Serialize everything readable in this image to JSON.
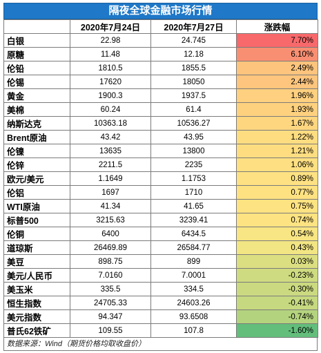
{
  "title": "隔夜全球金融市场行情",
  "headers": [
    "",
    "2020年7月24日",
    "2020年7月27日",
    "涨跌幅"
  ],
  "rows": [
    {
      "name": "白银",
      "d1": "22.98",
      "d2": "24.745",
      "chg": "7.70%",
      "color": "#f8696b"
    },
    {
      "name": "原糖",
      "d1": "11.48",
      "d2": "12.18",
      "chg": "6.10%",
      "color": "#f98f72"
    },
    {
      "name": "伦铅",
      "d1": "1810.5",
      "d2": "1855.5",
      "chg": "2.49%",
      "color": "#fdc47d"
    },
    {
      "name": "伦锡",
      "d1": "17620",
      "d2": "18050",
      "chg": "2.44%",
      "color": "#fdc57d"
    },
    {
      "name": "黄金",
      "d1": "1900.3",
      "d2": "1937.5",
      "chg": "1.96%",
      "color": "#fed07f"
    },
    {
      "name": "美棉",
      "d1": "60.24",
      "d2": "61.4",
      "chg": "1.93%",
      "color": "#fed17f"
    },
    {
      "name": "纳斯达克",
      "d1": "10363.18",
      "d2": "10536.27",
      "chg": "1.67%",
      "color": "#fed680"
    },
    {
      "name": "Brent原油",
      "d1": "43.42",
      "d2": "43.95",
      "chg": "1.22%",
      "color": "#fedd81"
    },
    {
      "name": "伦镍",
      "d1": "13635",
      "d2": "13800",
      "chg": "1.21%",
      "color": "#fedd81"
    },
    {
      "name": "伦锌",
      "d1": "2211.5",
      "d2": "2235",
      "chg": "1.06%",
      "color": "#fee082"
    },
    {
      "name": "欧元/美元",
      "d1": "1.1649",
      "d2": "1.1753",
      "chg": "0.89%",
      "color": "#fee182"
    },
    {
      "name": "伦铝",
      "d1": "1697",
      "d2": "1710",
      "chg": "0.77%",
      "color": "#fee282"
    },
    {
      "name": "WTI原油",
      "d1": "41.34",
      "d2": "41.65",
      "chg": "0.75%",
      "color": "#fee382"
    },
    {
      "name": "标普500",
      "d1": "3215.63",
      "d2": "3239.41",
      "chg": "0.74%",
      "color": "#fee382"
    },
    {
      "name": "伦铜",
      "d1": "6400",
      "d2": "6434.5",
      "chg": "0.54%",
      "color": "#f8e583"
    },
    {
      "name": "道琼斯",
      "d1": "26469.89",
      "d2": "26584.77",
      "chg": "0.43%",
      "color": "#f2e583"
    },
    {
      "name": "美豆",
      "d1": "898.75",
      "d2": "899",
      "chg": "0.03%",
      "color": "#dcdf81"
    },
    {
      "name": "美元/人民币",
      "d1": "7.0160",
      "d2": "7.0001",
      "chg": "-0.23%",
      "color": "#cfdb80"
    },
    {
      "name": "美玉米",
      "d1": "335.5",
      "d2": "334.5",
      "chg": "-0.30%",
      "color": "#cbda80"
    },
    {
      "name": "恒生指数",
      "d1": "24705.33",
      "d2": "24603.26",
      "chg": "-0.41%",
      "color": "#c6d980"
    },
    {
      "name": "美元指数",
      "d1": "94.347",
      "d2": "93.6508",
      "chg": "-0.74%",
      "color": "#b4d37e"
    },
    {
      "name": "普氏62铁矿",
      "d1": "109.55",
      "d2": "107.8",
      "chg": "-1.60%",
      "color": "#63be7b"
    }
  ],
  "source": "数据来源：Wind（期货价格均取收盘价）"
}
